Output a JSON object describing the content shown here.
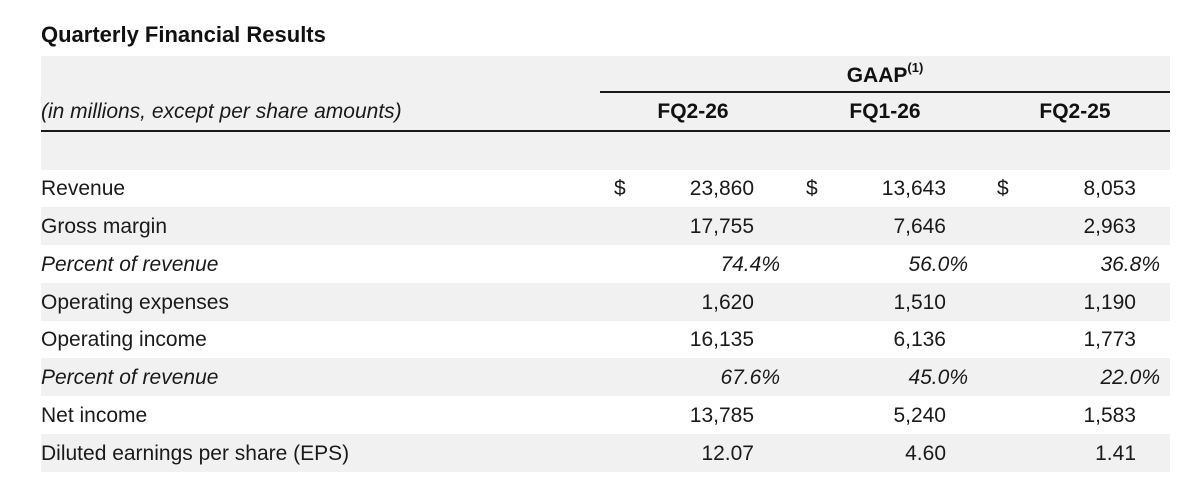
{
  "title": "Quarterly Financial Results",
  "header": {
    "gaap": "GAAP",
    "gaap_note": "(1)",
    "units": "(in millions, except per share amounts)",
    "columns": [
      "FQ2-26",
      "FQ1-26",
      "FQ2-25"
    ]
  },
  "rows": [
    {
      "label": "Revenue",
      "currency": "$",
      "values": [
        "23,860",
        "13,643",
        "8,053"
      ]
    },
    {
      "label": "Gross margin",
      "currency": "",
      "values": [
        "17,755",
        "7,646",
        "2,963"
      ]
    },
    {
      "label": "Percent of revenue",
      "currency": "",
      "values": [
        "74.4%",
        "56.0%",
        "36.8%"
      ]
    },
    {
      "label": "Operating expenses",
      "currency": "",
      "values": [
        "1,620",
        "1,510",
        "1,190"
      ]
    },
    {
      "label": "Operating income",
      "currency": "",
      "values": [
        "16,135",
        "6,136",
        "1,773"
      ]
    },
    {
      "label": "Percent of revenue",
      "currency": "",
      "values": [
        "67.6%",
        "45.0%",
        "22.0%"
      ]
    },
    {
      "label": "Net income",
      "currency": "",
      "values": [
        "13,785",
        "5,240",
        "1,583"
      ]
    },
    {
      "label": "Diluted earnings per share (EPS)",
      "currency": "",
      "values": [
        "12.07",
        "4.60",
        "1.41"
      ]
    }
  ]
}
